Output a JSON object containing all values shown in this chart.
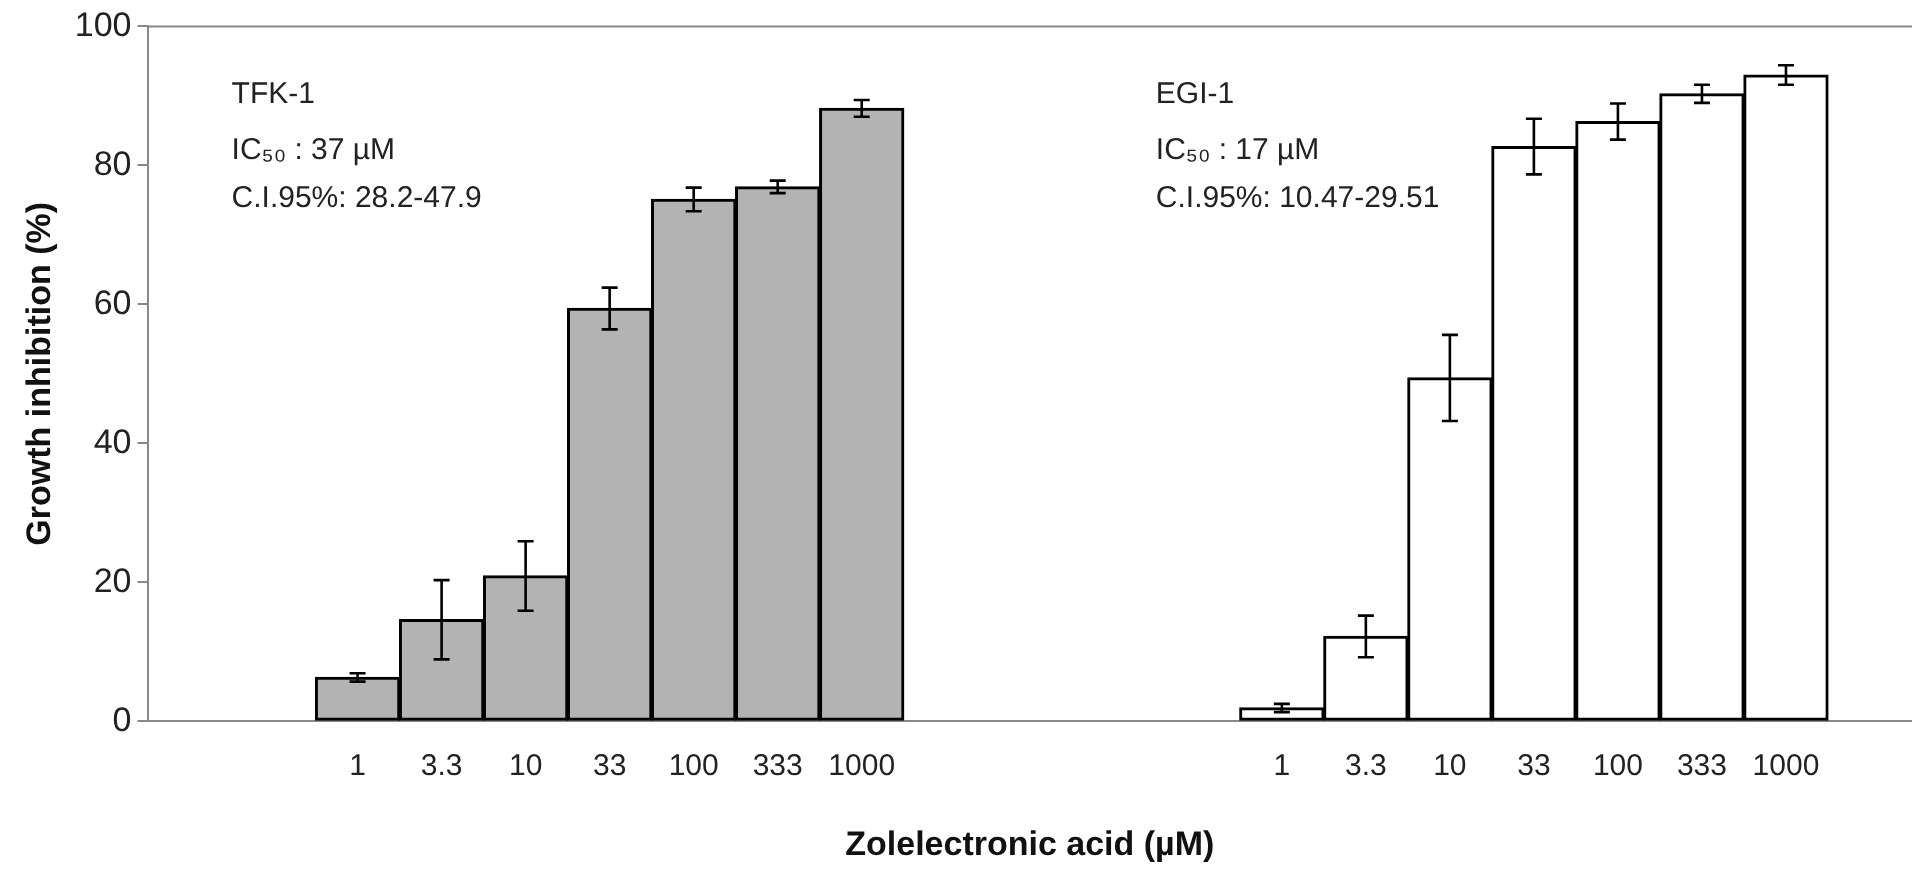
{
  "chart_data": {
    "type": "bar",
    "xlabel": "Zolelectronic acid (µM)",
    "ylabel": "Growth inhibition (%)",
    "categories": [
      null,
      null,
      "1",
      "3.3",
      "10",
      "33",
      "100",
      "333",
      "1000",
      null,
      null,
      null,
      null,
      "1",
      "3.3",
      "10",
      "33",
      "100",
      "333",
      "1000",
      null
    ],
    "series": [
      {
        "color": "#b3b3b3",
        "values": [
          null,
          null,
          6.3,
          14.6,
          20.9,
          59.4,
          75.1,
          76.9,
          88.2,
          null,
          null,
          null,
          null,
          null,
          null,
          null,
          null,
          null,
          null,
          null,
          null
        ],
        "errors": [
          null,
          null,
          0.6,
          5.7,
          5,
          3,
          1.7,
          0.9,
          1.2,
          null,
          null,
          null,
          null,
          null,
          null,
          null,
          null,
          null,
          null,
          null,
          null
        ]
      },
      {
        "color": "#ffffff",
        "values": [
          null,
          null,
          null,
          null,
          null,
          null,
          null,
          null,
          null,
          null,
          null,
          null,
          null,
          1.9,
          12.2,
          49.4,
          82.7,
          86.3,
          90.3,
          93.0,
          null
        ],
        "errors": [
          null,
          null,
          null,
          null,
          null,
          null,
          null,
          null,
          null,
          null,
          null,
          null,
          null,
          0.6,
          3,
          6.2,
          4,
          2.6,
          1.3,
          1.4,
          null
        ]
      }
    ],
    "annotations": [
      "TFK-1",
      "IC₅₀ : 37 µM",
      "C.I.95%: 28.2-47.9",
      "EGI-1",
      "IC₅₀ : 17 µM",
      "C.I.95%: 10.47-29.51"
    ],
    "ylim": [
      0,
      100
    ],
    "yticks": [
      0,
      20,
      40,
      60,
      80,
      100
    ],
    "grid": false,
    "legend": false
  }
}
